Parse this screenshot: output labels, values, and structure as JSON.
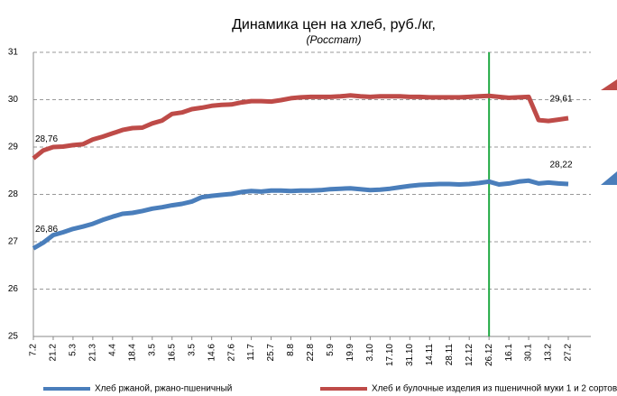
{
  "chart_data": {
    "type": "line",
    "title": "Динамика цен на хлеб, руб./кг,",
    "subtitle": "(Росстат)",
    "categories": [
      "7.2",
      null,
      "21.2",
      null,
      "5.3",
      null,
      "21.3",
      null,
      "4.4",
      null,
      "18.4",
      null,
      "3.5",
      null,
      "16.5",
      null,
      "3.5",
      null,
      "14.6",
      null,
      "27.6",
      null,
      "11.7",
      null,
      "25.7",
      null,
      "8.8",
      null,
      "22.8",
      null,
      "5.9",
      null,
      "19.9",
      null,
      "3.10",
      null,
      "17.10",
      null,
      "31.10",
      null,
      "14.11",
      null,
      "28.11",
      null,
      "12.12",
      null,
      "26.12",
      null,
      "16.1",
      null,
      "30.1",
      null,
      "13.2",
      null,
      "27.2"
    ],
    "series": [
      {
        "name": "Хлеб ржаной, ржано-пшеничный",
        "color": "#4a7ebb",
        "values": [
          26.86,
          26.98,
          27.14,
          27.2,
          27.27,
          27.32,
          27.38,
          27.46,
          27.53,
          27.59,
          27.61,
          27.65,
          27.7,
          27.73,
          27.77,
          27.8,
          27.85,
          27.94,
          27.97,
          27.99,
          28.01,
          28.05,
          28.07,
          28.06,
          28.08,
          28.08,
          28.07,
          28.08,
          28.08,
          28.09,
          28.11,
          28.12,
          28.13,
          28.11,
          28.09,
          28.1,
          28.12,
          28.15,
          28.18,
          28.2,
          28.21,
          28.22,
          28.22,
          28.21,
          28.22,
          28.24,
          28.27,
          28.21,
          28.23,
          28.27,
          28.29,
          28.23,
          28.25,
          28.23,
          28.22
        ],
        "value_labels": [
          "26,86",
          null,
          null,
          null,
          null,
          null,
          null,
          null,
          null,
          null,
          null,
          null,
          null,
          null,
          null,
          null,
          null,
          null,
          null,
          null,
          null,
          null,
          null,
          null,
          null,
          null,
          null,
          null,
          null,
          null,
          null,
          null,
          null,
          null,
          null,
          null,
          null,
          null,
          null,
          null,
          null,
          null,
          null,
          null,
          null,
          null,
          null,
          null,
          null,
          null,
          null,
          null,
          null,
          null,
          "28,22"
        ]
      },
      {
        "name": "Хлеб и булочные изделия из пшеничной муки 1 и 2 сортов",
        "color": "#be4b48",
        "values": [
          28.76,
          28.93,
          29.0,
          29.01,
          29.04,
          29.06,
          29.16,
          29.22,
          29.29,
          29.36,
          29.4,
          29.41,
          29.5,
          29.56,
          29.7,
          29.73,
          29.8,
          29.83,
          29.87,
          29.89,
          29.9,
          29.94,
          29.97,
          29.97,
          29.96,
          29.99,
          30.03,
          30.05,
          30.06,
          30.06,
          30.06,
          30.07,
          30.09,
          30.07,
          30.06,
          30.07,
          30.07,
          30.07,
          30.06,
          30.06,
          30.05,
          30.05,
          30.05,
          30.05,
          30.06,
          30.07,
          30.08,
          30.06,
          30.04,
          30.05,
          30.06,
          29.57,
          29.55,
          29.58,
          29.61
        ],
        "value_labels": [
          "28,76",
          null,
          null,
          null,
          null,
          null,
          null,
          null,
          null,
          null,
          null,
          null,
          null,
          null,
          null,
          null,
          null,
          null,
          null,
          null,
          null,
          null,
          null,
          null,
          null,
          null,
          null,
          null,
          null,
          null,
          null,
          null,
          null,
          null,
          null,
          null,
          null,
          null,
          null,
          null,
          null,
          null,
          null,
          null,
          null,
          null,
          null,
          null,
          null,
          null,
          null,
          null,
          null,
          null,
          "29,61"
        ]
      }
    ],
    "ylim": [
      25,
      31
    ],
    "yticks": [
      25,
      26,
      27,
      28,
      29,
      30,
      31
    ],
    "grid": true,
    "vline": {
      "category": "26.12",
      "color": "#22aa44"
    },
    "legend": "bottom"
  }
}
